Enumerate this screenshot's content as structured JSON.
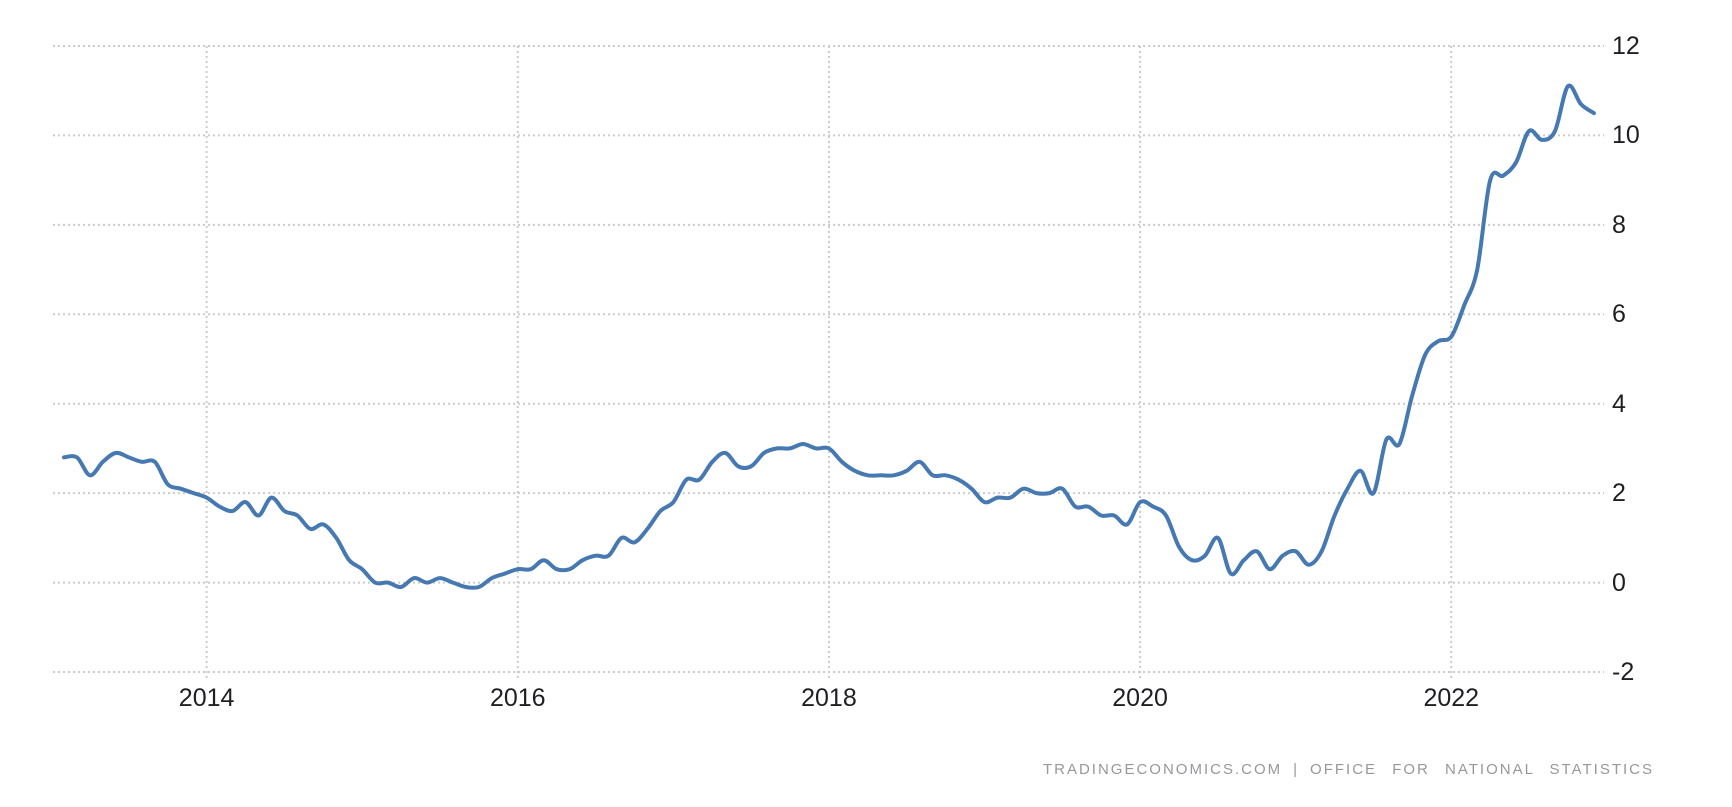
{
  "chart_data": {
    "type": "line",
    "title": "",
    "xlabel": "",
    "ylabel": "",
    "x_tick_labels": [
      "2014",
      "2016",
      "2018",
      "2020",
      "2022"
    ],
    "x_tick_years": [
      2014,
      2016,
      2018,
      2020,
      2022
    ],
    "y_ticks": [
      12,
      10,
      8,
      6,
      4,
      2,
      0,
      -2
    ],
    "ylim": [
      -2,
      12
    ],
    "frequency": "monthly",
    "x_start_month": "2013-02",
    "x_end_month": "2022-12",
    "grid": "dotted",
    "legend_position": "none",
    "line_color": "#4679b2",
    "gridline_color": "#cbcbcb",
    "tick_label_color": "#1f1f23",
    "source_left": "TRADINGECONOMICS.COM",
    "source_separator": "|",
    "source_right": "OFFICE FOR NATIONAL STATISTICS",
    "series": [
      {
        "values": [
          2.8,
          2.8,
          2.4,
          2.7,
          2.9,
          2.8,
          2.7,
          2.7,
          2.2,
          2.1,
          2.0,
          1.9,
          1.7,
          1.6,
          1.8,
          1.5,
          1.9,
          1.6,
          1.5,
          1.2,
          1.3,
          1.0,
          0.5,
          0.3,
          0.0,
          0.0,
          -0.1,
          0.1,
          0.0,
          0.1,
          0.0,
          -0.1,
          -0.1,
          0.1,
          0.2,
          0.3,
          0.3,
          0.5,
          0.3,
          0.3,
          0.5,
          0.6,
          0.6,
          1.0,
          0.9,
          1.2,
          1.6,
          1.8,
          2.3,
          2.3,
          2.7,
          2.9,
          2.6,
          2.6,
          2.9,
          3.0,
          3.0,
          3.1,
          3.0,
          3.0,
          2.7,
          2.5,
          2.4,
          2.4,
          2.4,
          2.5,
          2.7,
          2.4,
          2.4,
          2.3,
          2.1,
          1.8,
          1.9,
          1.9,
          2.1,
          2.0,
          2.0,
          2.1,
          1.7,
          1.7,
          1.5,
          1.5,
          1.3,
          1.8,
          1.7,
          1.5,
          0.8,
          0.5,
          0.6,
          1.0,
          0.2,
          0.5,
          0.7,
          0.3,
          0.6,
          0.7,
          0.4,
          0.7,
          1.5,
          2.1,
          2.5,
          2.0,
          3.2,
          3.1,
          4.2,
          5.1,
          5.4,
          5.5,
          6.2,
          7.0,
          9.0,
          9.1,
          9.4,
          10.1,
          9.9,
          10.1,
          11.1,
          10.7,
          10.5
        ]
      }
    ]
  }
}
